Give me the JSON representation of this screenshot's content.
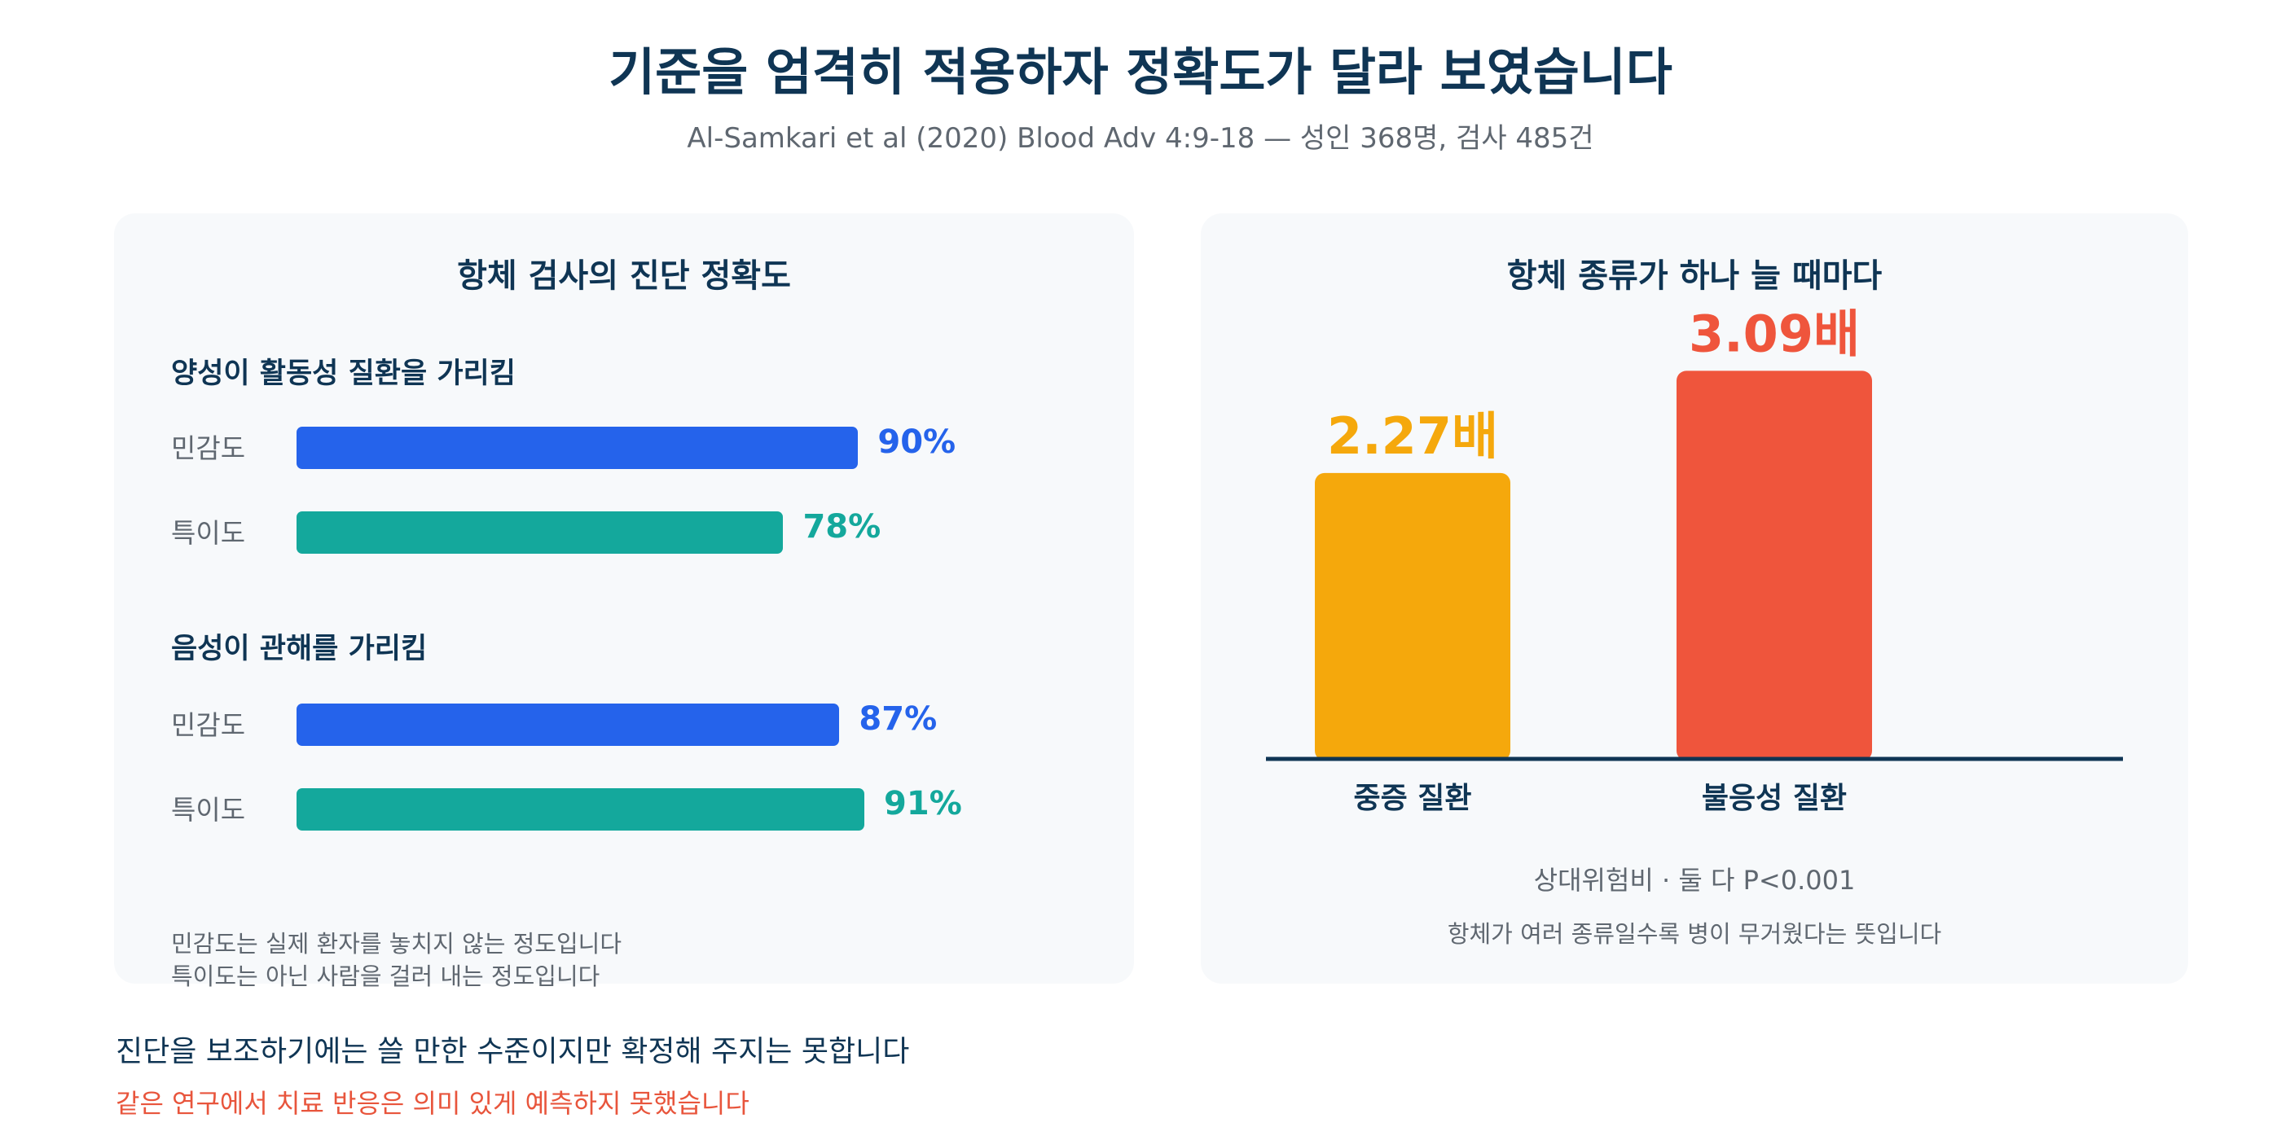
{
  "header": {
    "title": "기준을 엄격히 적용하자 정확도가 달라 보였습니다",
    "subtitle": "Al-Samkari et al (2020) Blood Adv 4:9-18 — 성인 368명, 검사 485건"
  },
  "left_panel": {
    "title": "항체 검사의 진단 정확도",
    "footnote_1": "민감도는 실제 환자를 놓치지 않는 정도입니다",
    "footnote_2": "특이도는 아닌 사람을 걸러 내는 정도입니다"
  },
  "right_panel": {
    "title": "항체 종류가 하나 늘 때마다",
    "note": "상대위험비 · 둘 다 P<0.001",
    "caption": "항체가 여러 종류일수록 병이 무거웠다는 뜻입니다"
  },
  "footer": {
    "main": "진단을 보조하기에는 쓸 만한 수준이지만 확정해 주지는 못합니다",
    "warning": "같은 연구에서 치료 반응은 의미 있게 예측하지 못했습니다"
  },
  "chart_data": [
    {
      "type": "bar",
      "orientation": "horizontal",
      "title": "항체 검사의 진단 정확도",
      "groups": [
        {
          "name": "양성이 활동성 질환을 가리킴",
          "bars": [
            {
              "label": "민감도",
              "value": 90,
              "display": "90%"
            },
            {
              "label": "특이도",
              "value": 78,
              "display": "78%"
            }
          ]
        },
        {
          "name": "음성이 관해를 가리킴",
          "bars": [
            {
              "label": "민감도",
              "value": 87,
              "display": "87%"
            },
            {
              "label": "특이도",
              "value": 91,
              "display": "91%"
            }
          ]
        }
      ],
      "xlim": [
        0,
        100
      ],
      "colors": {
        "민감도": "#2563eb",
        "특이도": "#14a89c"
      }
    },
    {
      "type": "bar",
      "orientation": "vertical",
      "title": "항체 종류가 하나 늘 때마다",
      "categories": [
        "중증 질환",
        "불응성 질환"
      ],
      "values": [
        2.27,
        3.09
      ],
      "value_labels": [
        "2.27배",
        "3.09배"
      ],
      "colors": [
        "#f5a80c",
        "#ef553c"
      ],
      "ylim": [
        0,
        3.4
      ]
    }
  ]
}
